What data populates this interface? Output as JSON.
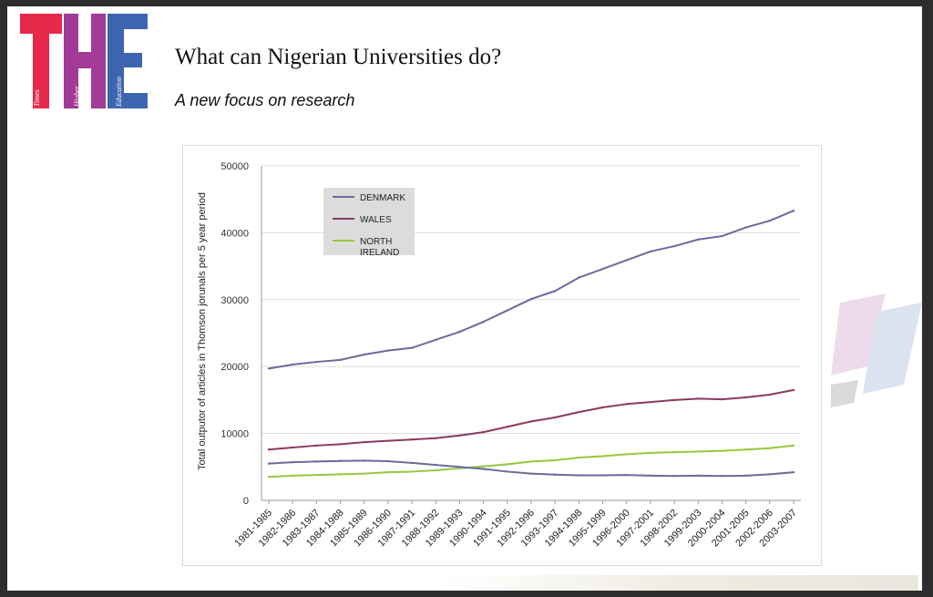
{
  "slide": {
    "title": "What can Nigerian Universities do?",
    "subtitle": "A new focus on research"
  },
  "logo": {
    "letters": [
      "T",
      "H",
      "E"
    ],
    "words": [
      "Times",
      "Higher",
      "Education"
    ],
    "colors": [
      "#e8284a",
      "#a23a97",
      "#3e65b0"
    ]
  },
  "chart_data": {
    "type": "line",
    "title": "",
    "xlabel": "",
    "ylabel": "Total outputor of articles in Thomson jorunals  per 5 year period",
    "ylim": [
      0,
      50000
    ],
    "yticks": [
      0,
      10000,
      20000,
      30000,
      40000,
      50000
    ],
    "grid": true,
    "legend_position": "top-left",
    "categories": [
      "1981-1985",
      "1982-1986",
      "1983-1987",
      "1984-1988",
      "1985-1989",
      "1986-1990",
      "1987-1991",
      "1988-1992",
      "1989-1993",
      "1990-1994",
      "1991-1995",
      "1992-1996",
      "1993-1997",
      "1994-1998",
      "1995-1999",
      "1996-2000",
      "1997-2001",
      "1998-2002",
      "1999-2003",
      "2000-2004",
      "2001-2005",
      "2002-2006",
      "2003-2007"
    ],
    "series": [
      {
        "name": "DENMARK",
        "color": "#6b6a9e",
        "values": [
          19700,
          20300,
          20700,
          21000,
          21800,
          22400,
          22800,
          24000,
          25200,
          26700,
          28400,
          30100,
          31300,
          33300,
          34600,
          35900,
          37200,
          38000,
          39000,
          39500,
          40800,
          41800,
          43300
        ]
      },
      {
        "name": "WALES",
        "color": "#8b3a62",
        "values": [
          7600,
          7900,
          8200,
          8400,
          8700,
          8900,
          9100,
          9300,
          9700,
          10200,
          11000,
          11800,
          12400,
          13200,
          13900,
          14400,
          14700,
          15000,
          15200,
          15100,
          15400,
          15800,
          16500
        ]
      },
      {
        "name": "NORTH IRELAND",
        "color": "#95c93d",
        "values": [
          3500,
          3700,
          3800,
          3900,
          4000,
          4200,
          4300,
          4500,
          4800,
          5100,
          5400,
          5800,
          6000,
          6400,
          6600,
          6900,
          7100,
          7200,
          7300,
          7400,
          7600,
          7800,
          8200
        ]
      },
      {
        "name": "",
        "color": "#6b6a9e",
        "values": [
          5500,
          5700,
          5800,
          5900,
          5950,
          5850,
          5600,
          5300,
          5000,
          4700,
          4300,
          4000,
          3850,
          3750,
          3750,
          3800,
          3700,
          3650,
          3700,
          3650,
          3700,
          3900,
          4200
        ]
      }
    ]
  }
}
